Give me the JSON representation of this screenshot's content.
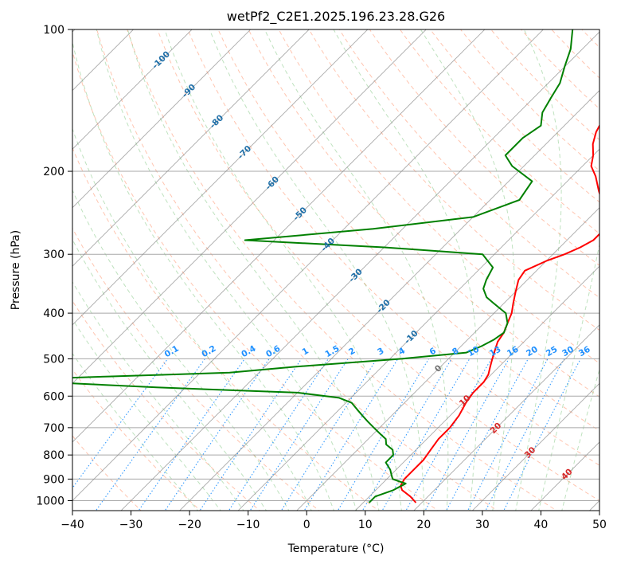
{
  "chart_data": {
    "type": "line",
    "subtype": "skew-t log-p sounding",
    "title": "wetPf2_C2E1.2025.196.23.28.G26",
    "xlabel": "Temperature (°C)",
    "ylabel": "Pressure (hPa)",
    "xlim": [
      -40,
      50
    ],
    "ylim": [
      1050,
      100
    ],
    "y_scale": "log",
    "grid": true,
    "x_ticks": [
      "−40",
      "−30",
      "−20",
      "−10",
      "0",
      "10",
      "20",
      "30",
      "40",
      "50"
    ],
    "y_ticks": [
      "100",
      "200",
      "300",
      "400",
      "500",
      "600",
      "700",
      "800",
      "900",
      "1000"
    ],
    "colors": {
      "temperature": "#ff0000",
      "dewpoint": "#008000",
      "isotherm": "#808080",
      "dry_adiabat": "#ff7f50",
      "moist_adiabat": "#2ca02c",
      "mixing_ratio": "#1e90ff",
      "isotherm_label": "#1f6fa8",
      "hot_isotherm_label": "#d62728"
    },
    "series": [
      {
        "key": "temperature",
        "pressure": [
          1010,
          980,
          950,
          930,
          900,
          860,
          820,
          780,
          740,
          700,
          660,
          620,
          590,
          560,
          540,
          520,
          500,
          480,
          460,
          440,
          420,
          400,
          380,
          360,
          340,
          325,
          310,
          300,
          290,
          280,
          265,
          250,
          235,
          220,
          205,
          195,
          185,
          175,
          165,
          155,
          145,
          135,
          125,
          118,
          112,
          106,
          100
        ],
        "values": [
          19,
          17,
          14.5,
          13.5,
          13,
          13,
          13,
          12.5,
          12,
          12,
          11.5,
          10.5,
          10,
          10,
          9.5,
          8.5,
          7.5,
          6.5,
          5.5,
          5,
          4,
          3,
          1.5,
          0,
          -1.5,
          -2,
          0,
          2,
          3.5,
          4.5,
          4.5,
          3,
          0,
          -3,
          -6,
          -8.5,
          -10,
          -12,
          -13.5,
          -14.5,
          -15,
          -16,
          -18,
          -19,
          -19.5,
          -20.5,
          -22
        ]
      },
      {
        "key": "dewpoint",
        "pressure": [
          1010,
          995,
          980,
          950,
          920,
          900,
          880,
          860,
          830,
          800,
          780,
          760,
          740,
          720,
          700,
          680,
          660,
          640,
          620,
          605,
          590,
          575,
          560,
          550,
          545,
          535,
          520,
          500,
          485,
          470,
          455,
          440,
          420,
          400,
          380,
          370,
          355,
          340,
          320,
          300,
          290,
          280,
          265,
          250,
          230,
          210,
          195,
          185,
          170,
          160,
          150,
          140,
          130,
          120,
          110,
          100
        ],
        "values": [
          11,
          11,
          11,
          13,
          14,
          11,
          10,
          9,
          7,
          7,
          6,
          4,
          3,
          1,
          -1,
          -3,
          -5,
          -7,
          -9,
          -12,
          -20,
          -45,
          -65,
          -64,
          -55,
          -35,
          -25,
          -8,
          2,
          3.5,
          4.5,
          5,
          4,
          2,
          -2,
          -4,
          -6,
          -7,
          -8,
          -12,
          -30,
          -55,
          -35,
          -20,
          -15,
          -16,
          -22,
          -25,
          -25,
          -24,
          -26,
          -27,
          -28,
          -30,
          -32,
          -35
        ]
      }
    ],
    "isotherm_labels": [
      "-100",
      "-90",
      "-80",
      "-70",
      "-60",
      "-50",
      "-40",
      "-30",
      "-20",
      "-10",
      "0",
      "10",
      "20",
      "30",
      "40"
    ],
    "mixing_ratio_labels": [
      "0.1",
      "0.2",
      "0.4",
      "0.6",
      "1",
      "1.5",
      "2",
      "3",
      "4",
      "6",
      "8",
      "10",
      "13",
      "16",
      "20",
      "25",
      "30",
      "36"
    ]
  }
}
